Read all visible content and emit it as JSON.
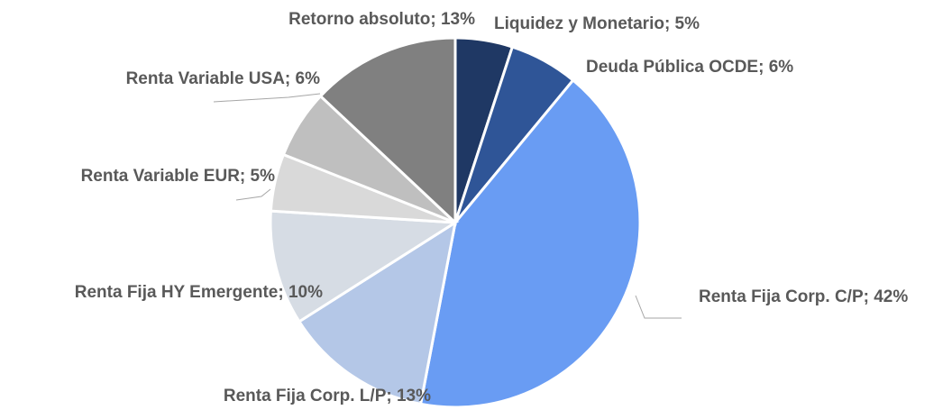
{
  "chart_data": {
    "type": "pie",
    "categories": [
      "Liquidez y Monetario",
      "Deuda Pública OCDE",
      "Renta Fija Corp. C/P",
      "Renta Fija Corp. L/P",
      "Renta Fija HY Emergente",
      "Renta Variable EUR",
      "Renta Variable USA",
      "Retorno absoluto"
    ],
    "values": [
      5,
      6,
      42,
      13,
      10,
      5,
      6,
      13
    ],
    "value_labels": [
      "Liquidez y Monetario; 5%",
      "Deuda Pública OCDE; 6%",
      "Renta Fija Corp. C/P; 42%",
      "Renta Fija Corp. L/P; 13%",
      "Renta Fija HY Emergente; 10%",
      "Renta Variable EUR; 5%",
      "Renta Variable USA; 6%",
      "Retorno absoluto; 13%"
    ],
    "colors": [
      "#1f3864",
      "#2f5597",
      "#699cf3",
      "#b4c7e7",
      "#d6dce4",
      "#d9d9d9",
      "#bfbfbf",
      "#808080"
    ]
  }
}
